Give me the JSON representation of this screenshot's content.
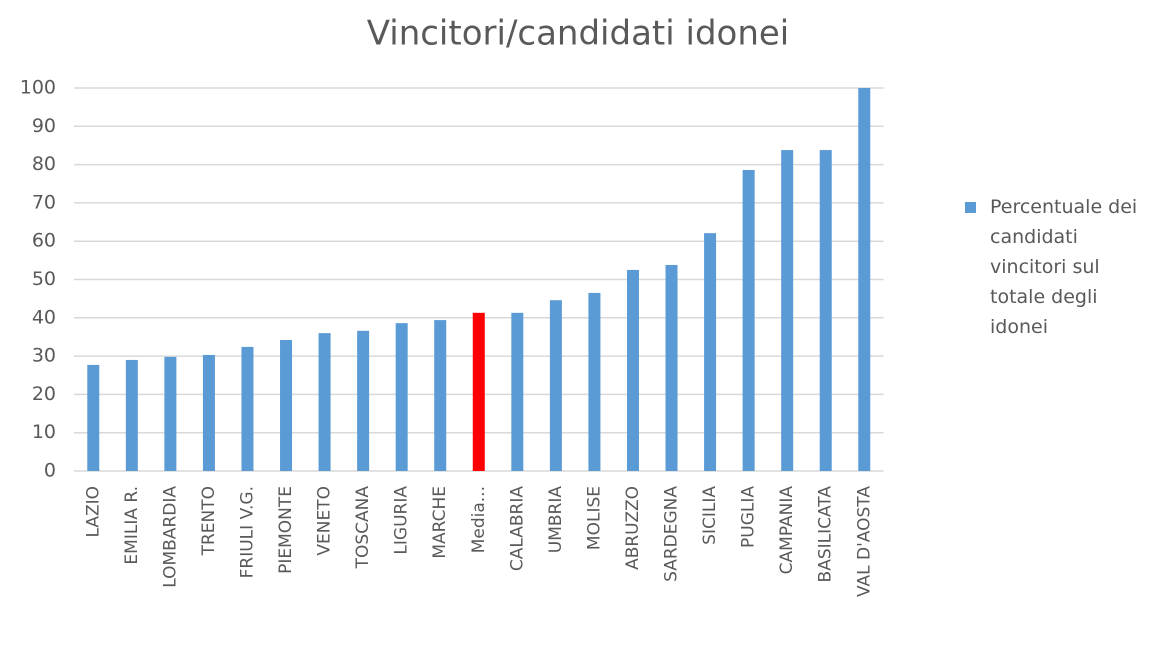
{
  "chart_data": {
    "type": "bar",
    "title": "Vincitori/candidati idonei",
    "categories": [
      "LAZIO",
      "EMILIA R.",
      "LOMBARDIA",
      "TRENTO",
      "FRIULI V.G.",
      "PIEMONTE",
      "VENETO",
      "TOSCANA",
      "LIGURIA",
      "MARCHE",
      "Media...",
      "CALABRIA",
      "UMBRIA",
      "MOLISE",
      "ABRUZZO",
      "SARDEGNA",
      "SICILIA",
      "PUGLIA",
      "CAMPANIA",
      "BASILICATA",
      "VAL D'AOSTA"
    ],
    "series": [
      {
        "name": "Percentuale dei candidati vincitori sul totale degli idonei",
        "color": "#5b9bd5",
        "values": [
          27.7,
          29,
          29.8,
          30.3,
          32.4,
          34.2,
          36,
          36.6,
          38.6,
          39.4,
          41.3,
          41.3,
          44.6,
          46.5,
          52.5,
          53.8,
          62.1,
          78.6,
          83.8,
          83.8,
          100
        ],
        "colors": [
          "#5b9bd5",
          "#5b9bd5",
          "#5b9bd5",
          "#5b9bd5",
          "#5b9bd5",
          "#5b9bd5",
          "#5b9bd5",
          "#5b9bd5",
          "#5b9bd5",
          "#5b9bd5",
          "#ff0000",
          "#5b9bd5",
          "#5b9bd5",
          "#5b9bd5",
          "#5b9bd5",
          "#5b9bd5",
          "#5b9bd5",
          "#5b9bd5",
          "#5b9bd5",
          "#5b9bd5",
          "#5b9bd5"
        ]
      }
    ],
    "ylim": [
      0,
      100
    ],
    "yticks": [
      0,
      10,
      20,
      30,
      40,
      50,
      60,
      70,
      80,
      90,
      100
    ],
    "grid": true,
    "legend": "right"
  }
}
